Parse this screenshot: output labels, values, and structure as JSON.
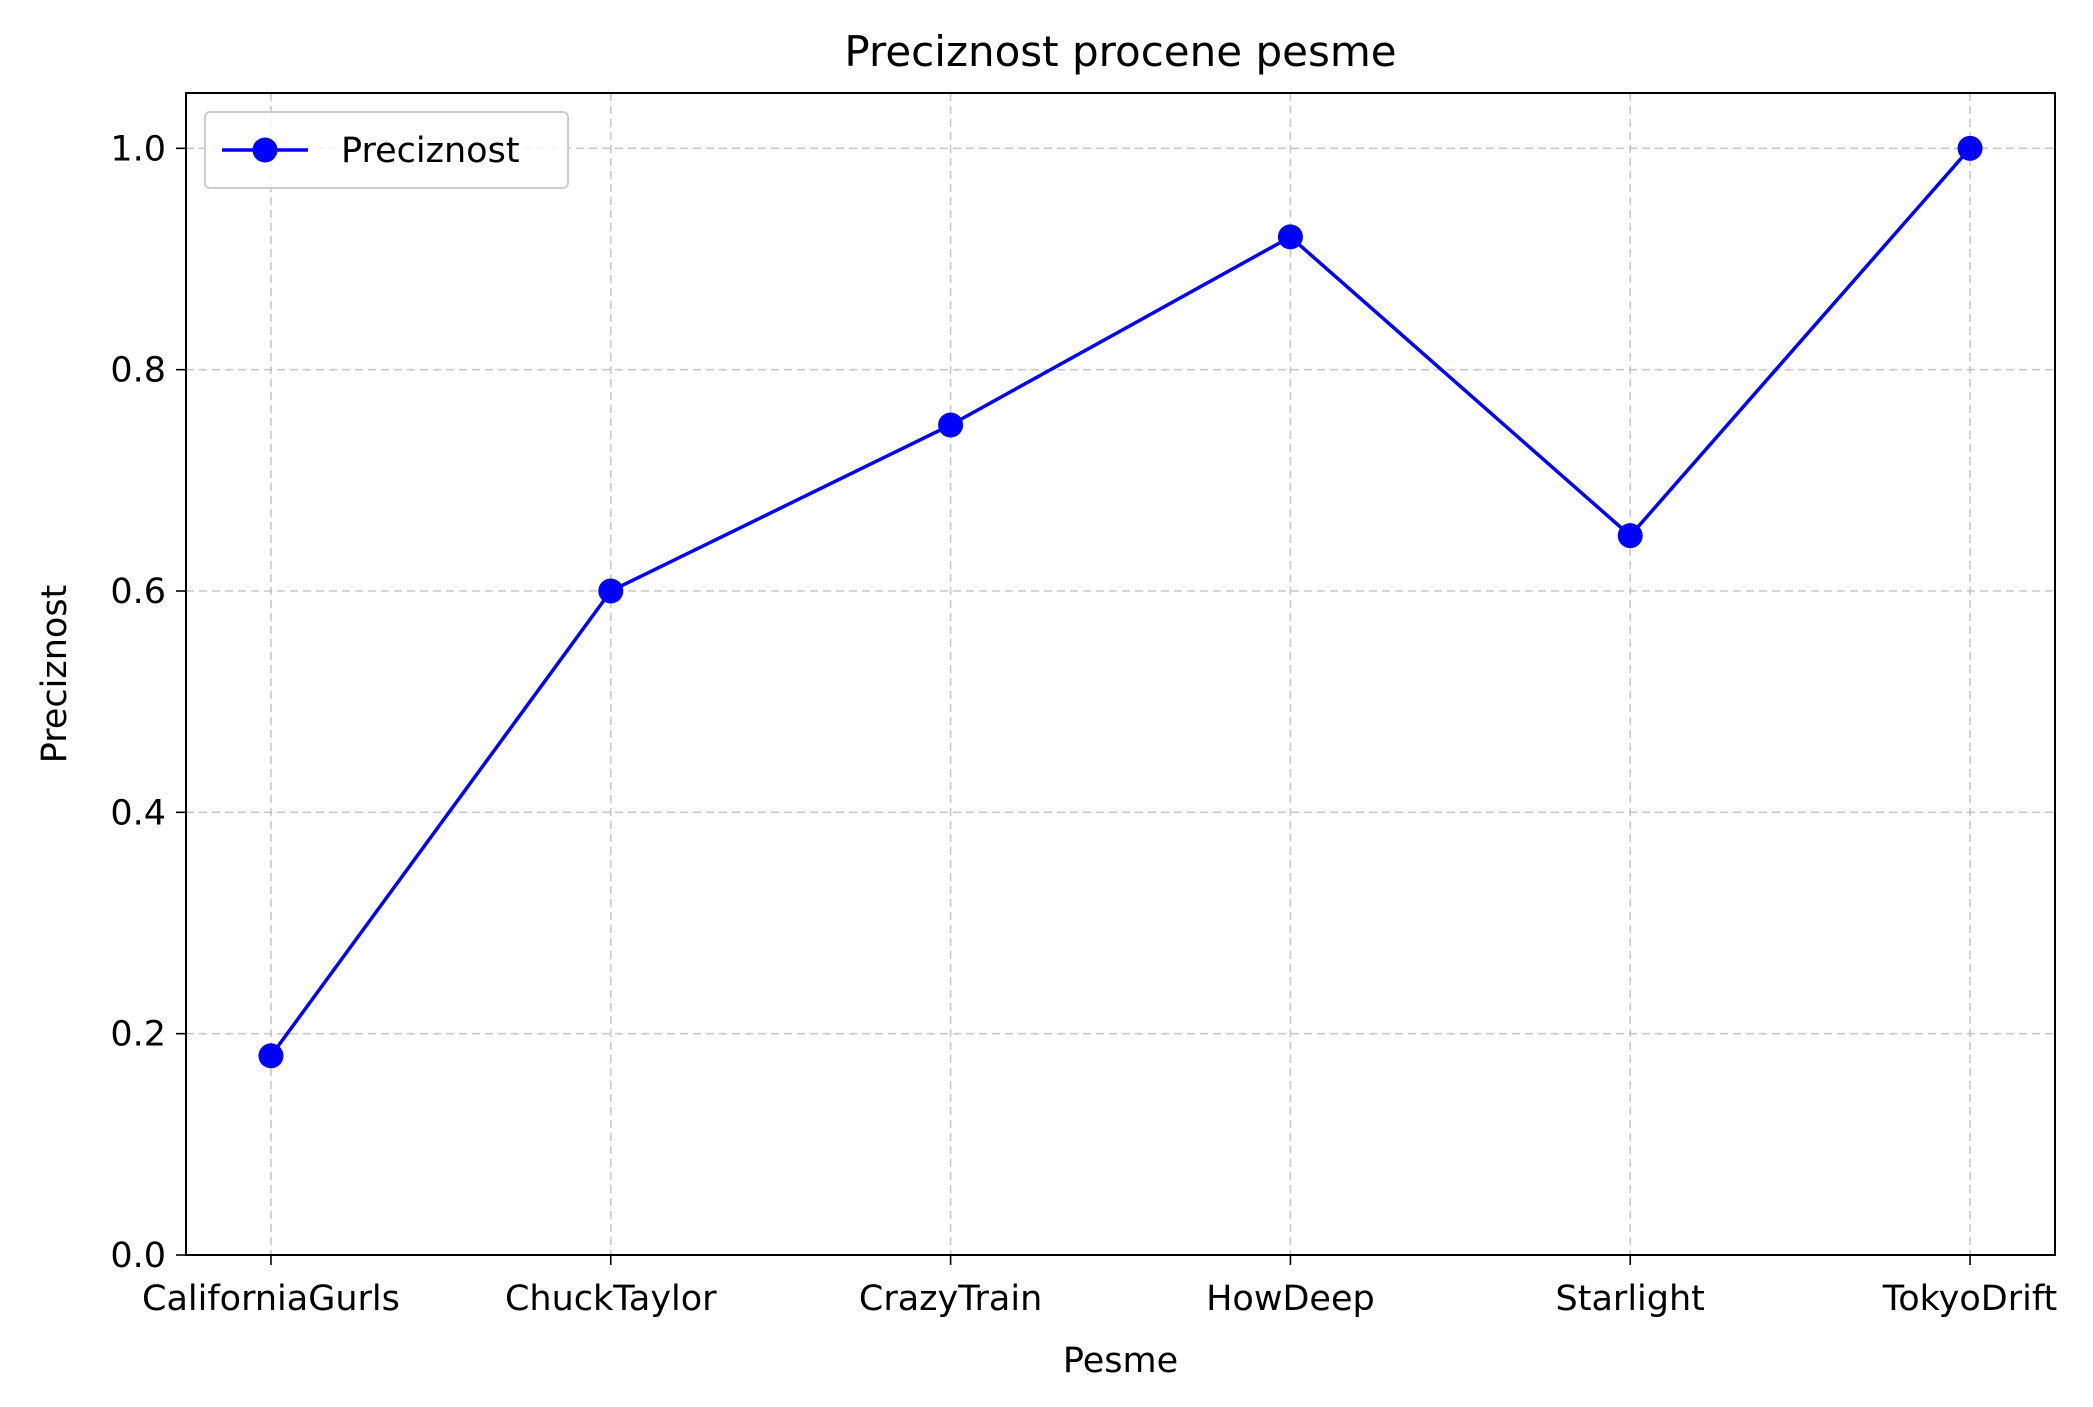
{
  "chart_data": {
    "type": "line",
    "title": "Preciznost procene pesme",
    "xlabel": "Pesme",
    "ylabel": "Preciznost",
    "categories": [
      "CaliforniaGurls",
      "ChuckTaylor",
      "CrazyTrain",
      "HowDeep",
      "Starlight",
      "TokyoDrift"
    ],
    "series": [
      {
        "name": "Preciznost",
        "values": [
          0.18,
          0.6,
          0.75,
          0.92,
          0.65,
          1.0
        ],
        "color": "#0000ff",
        "marker": "circle"
      }
    ],
    "ylim": [
      0.0,
      1.05
    ],
    "yticks": [
      0.0,
      0.2,
      0.4,
      0.6,
      0.8,
      1.0
    ],
    "ytick_labels": [
      "0.0",
      "0.2",
      "0.4",
      "0.6",
      "0.8",
      "1.0"
    ],
    "grid": true,
    "grid_style": "dashed",
    "legend_position": "upper-left"
  }
}
